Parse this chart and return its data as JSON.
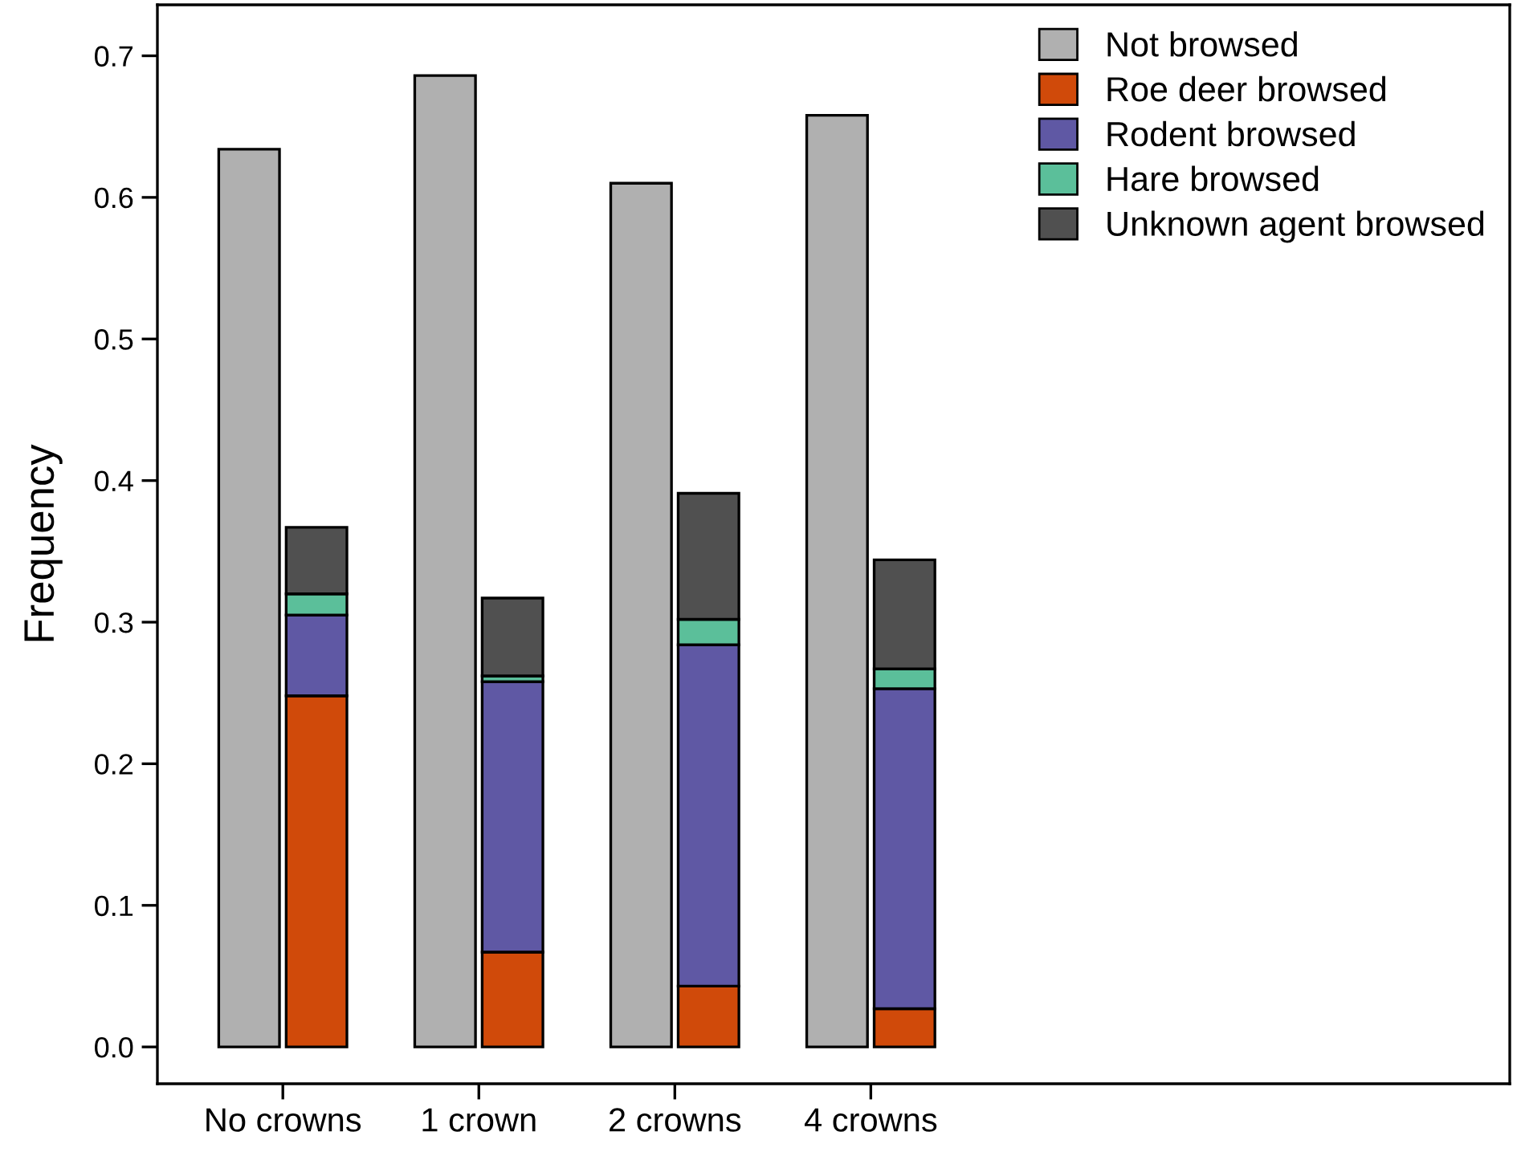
{
  "chart_data": {
    "type": "bar",
    "ylabel": "Frequency",
    "categories": [
      "No crowns",
      "1 crown",
      "2 crowns",
      "4 crowns"
    ],
    "series": [
      {
        "name": "Not browsed",
        "color": "#b0b0b0",
        "values": [
          0.634,
          0.686,
          0.61,
          0.658
        ]
      },
      {
        "name": "Roe deer browsed",
        "color": "#d04a0a",
        "values": [
          0.248,
          0.067,
          0.043,
          0.027
        ],
        "base": [
          0,
          0,
          0,
          0
        ]
      },
      {
        "name": "Rodent browsed",
        "color": "#5f58a4",
        "values": [
          0.057,
          0.191,
          0.241,
          0.226
        ],
        "base": [
          0.248,
          0.067,
          0.043,
          0.027
        ]
      },
      {
        "name": "Hare browsed",
        "color": "#5bbf9a",
        "values": [
          0.015,
          0.004,
          0.018,
          0.014
        ],
        "base": [
          0.305,
          0.258,
          0.284,
          0.253
        ]
      },
      {
        "name": "Unknown agent browsed",
        "color": "#505050",
        "values": [
          0.047,
          0.055,
          0.089,
          0.077
        ],
        "base": [
          0.32,
          0.262,
          0.302,
          0.267
        ]
      }
    ],
    "ylim": [
      -0.026,
      0.736
    ],
    "yticks": [
      {
        "value": 0,
        "label": "0.0"
      },
      0.1,
      0.2,
      0.3,
      0.4,
      0.5,
      0.6,
      0.7
    ],
    "legend": "top right",
    "grid": false
  }
}
